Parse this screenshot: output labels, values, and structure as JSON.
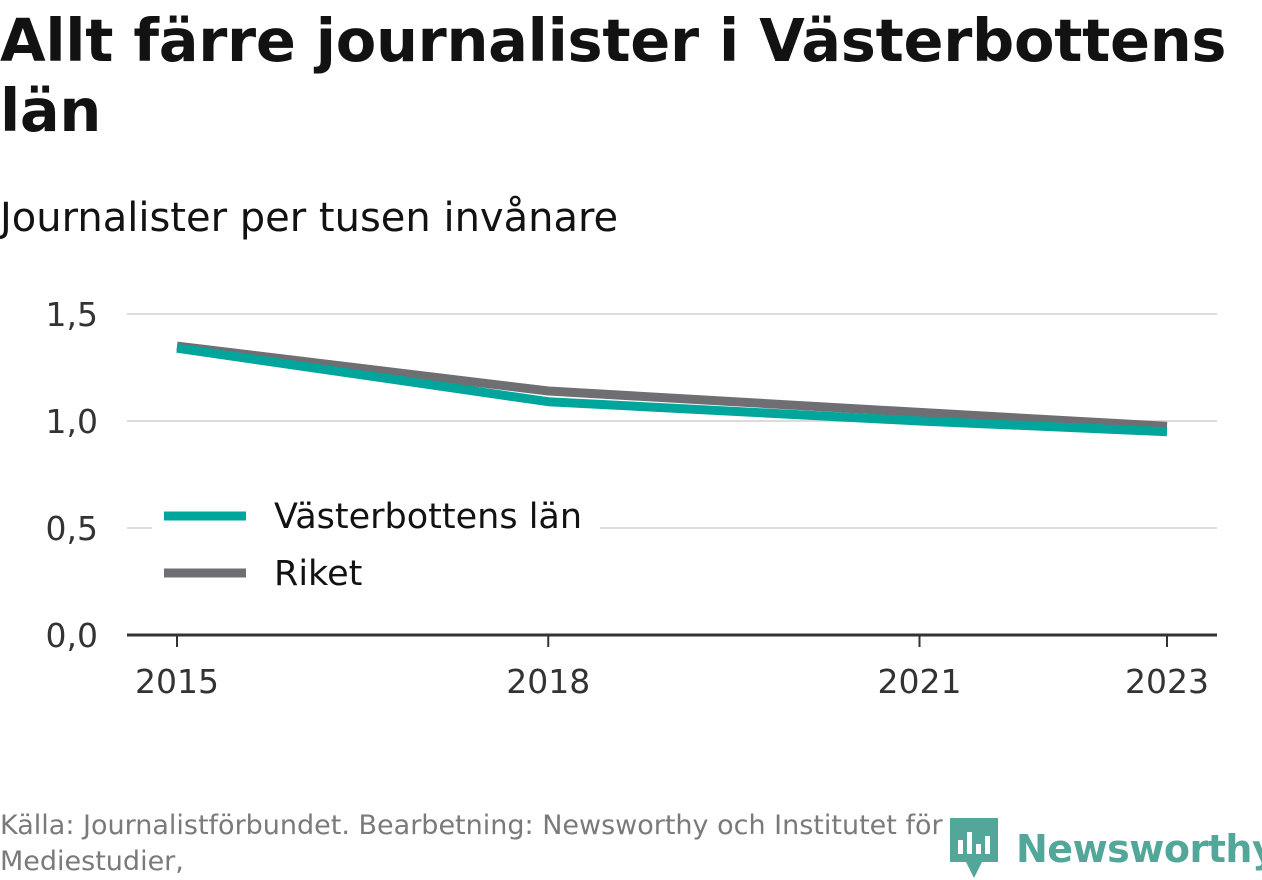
{
  "chart_data": {
    "type": "line",
    "title": "Allt färre journalister i Västerbottens län",
    "subtitle": "Journalister per tusen invånare",
    "x": [
      2015,
      2018,
      2021,
      2023
    ],
    "x_ticks": [
      "2015",
      "2018",
      "2021",
      "2023"
    ],
    "ylim": [
      0,
      1.5
    ],
    "y_ticks": [
      "0,0",
      "0,5",
      "1,0",
      "1,5"
    ],
    "y_tick_values": [
      0,
      0.5,
      1.0,
      1.5
    ],
    "grid": "horizontal",
    "legend_position": "lower-left",
    "series": [
      {
        "name": "Riket",
        "color": "#6f6e72",
        "values": [
          1.35,
          1.14,
          1.04,
          0.975
        ]
      },
      {
        "name": "Västerbottens län",
        "color": "#00a69c",
        "values": [
          1.34,
          1.09,
          1.0,
          0.95
        ]
      }
    ]
  },
  "source_text": "Källa: Journalistförbundet. Bearbetning: Newsworthy och Institutet för Mediestudier,",
  "logo": {
    "text": "Newsworthy",
    "color": "#53a69a"
  }
}
